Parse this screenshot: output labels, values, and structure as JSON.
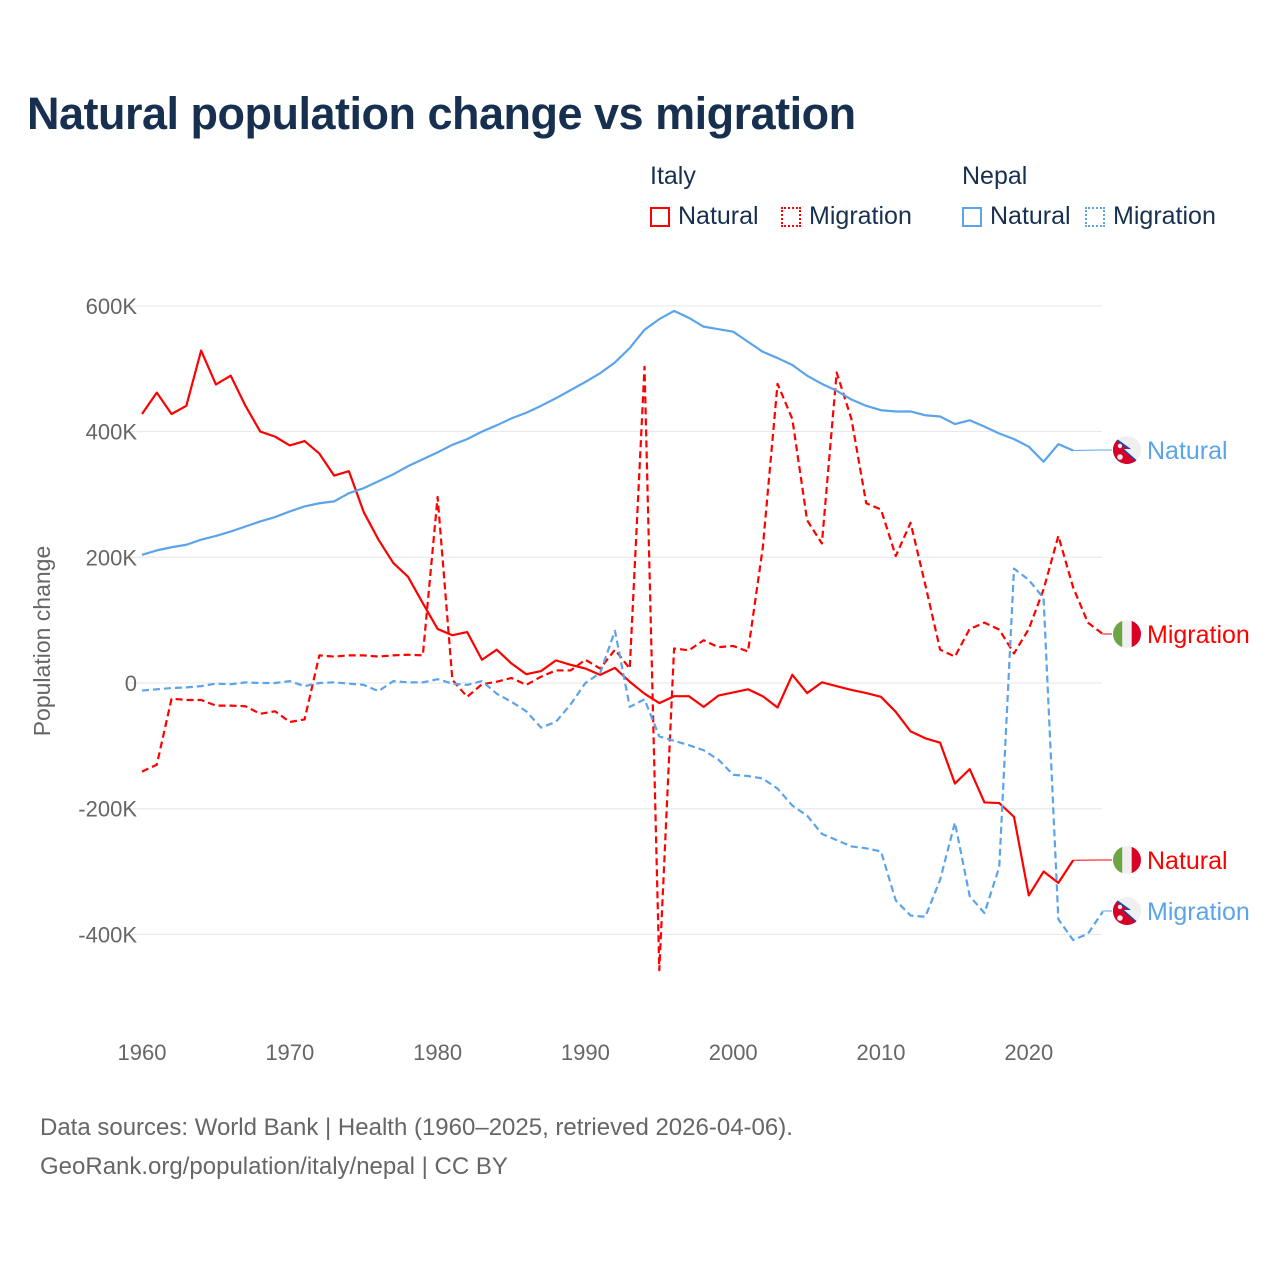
{
  "title": "Natural population change vs migration",
  "legend": {
    "groups": [
      {
        "name": "Italy",
        "items": [
          {
            "label": "Natural",
            "style": "solid",
            "color": "#ff0000"
          },
          {
            "label": "Migration",
            "style": "dotted",
            "color": "#ff0000"
          }
        ]
      },
      {
        "name": "Nepal",
        "items": [
          {
            "label": "Natural",
            "style": "solid",
            "color": "#5ba4ea"
          },
          {
            "label": "Migration",
            "style": "dotted",
            "color": "#5ba4ea"
          }
        ]
      }
    ]
  },
  "footer": {
    "line1": "Data sources: World Bank | Health (1960–2025, retrieved 2026-04-06).",
    "line2": "GeoRank.org/population/italy/nepal | CC BY"
  },
  "chart_data": {
    "type": "line",
    "title": "Natural population change vs migration",
    "xlabel": "",
    "ylabel": "Population change",
    "xlim": [
      1960,
      2025
    ],
    "ylim": [
      -400000,
      600000
    ],
    "grid": true,
    "legend_position": "top-right",
    "x_ticks": [
      1960,
      1970,
      1980,
      1990,
      2000,
      2010,
      2020
    ],
    "x_tick_labels": [
      "1960",
      "1970",
      "1980",
      "1990",
      "2000",
      "2010",
      "2020"
    ],
    "y_ticks": [
      -400000,
      -200000,
      0,
      200000,
      400000,
      600000
    ],
    "y_tick_labels": [
      "-400K",
      "-200K",
      "0",
      "200K",
      "400K",
      "600K"
    ],
    "x_start": 1960,
    "series": [
      {
        "name": "Italy Natural",
        "end_label": "Natural",
        "flag": "italy",
        "color": "#ff0000",
        "dashed": false,
        "values_thousands": [
          428,
          462,
          428,
          441,
          529,
          475,
          489,
          441,
          400,
          392,
          378,
          385,
          365,
          330,
          337,
          272,
          228,
          191,
          169,
          127,
          86,
          76,
          81,
          37,
          53,
          31,
          14,
          19,
          36,
          29,
          23,
          13,
          24,
          2,
          -17,
          -32,
          -21,
          -21,
          -38,
          -20,
          -15,
          -10,
          -21,
          -39,
          13,
          -16,
          1,
          -5,
          -11,
          -16,
          -22,
          -46,
          -77,
          -88,
          -95,
          -160,
          -137,
          -190,
          -191,
          -213,
          -338,
          -300,
          -318,
          -282
        ]
      },
      {
        "name": "Italy Migration",
        "end_label": "Migration",
        "flag": "italy",
        "color": "#ff0000",
        "dashed": true,
        "values_thousands": [
          -141,
          -130,
          -25,
          -27,
          -27,
          -36,
          -36,
          -37,
          -49,
          -45,
          -62,
          -58,
          44,
          42,
          44,
          44,
          42,
          44,
          45,
          44,
          296,
          5,
          -22,
          -2,
          2,
          8,
          -3,
          10,
          20,
          20,
          37,
          23,
          53,
          23,
          503,
          -457,
          55,
          52,
          68,
          57,
          59,
          50,
          215,
          476,
          420,
          259,
          222,
          494,
          420,
          286,
          276,
          202,
          255,
          156,
          53,
          42,
          86,
          96,
          85,
          47,
          86,
          149,
          234,
          152,
          96,
          78
        ]
      },
      {
        "name": "Nepal Natural",
        "end_label": "Natural",
        "flag": "nepal",
        "color": "#5ba4ea",
        "dashed": false,
        "values_thousands": [
          204,
          211,
          216,
          220,
          228,
          234,
          241,
          249,
          257,
          264,
          273,
          281,
          286,
          289,
          302,
          310,
          321,
          332,
          345,
          356,
          367,
          379,
          388,
          400,
          410,
          421,
          430,
          441,
          453,
          466,
          479,
          493,
          510,
          533,
          562,
          579,
          592,
          581,
          567,
          563,
          559,
          543,
          527,
          517,
          506,
          489,
          476,
          465,
          451,
          441,
          434,
          432,
          432,
          426,
          424,
          412,
          418,
          408,
          397,
          388,
          376,
          352,
          380,
          370
        ]
      },
      {
        "name": "Nepal Migration",
        "end_label": "Migration",
        "flag": "nepal",
        "color": "#5ba4ea",
        "dashed": true,
        "values_thousands": [
          -12,
          -10,
          -8,
          -7,
          -5,
          -1,
          -2,
          1,
          0,
          0,
          3,
          -5,
          0,
          1,
          -1,
          -3,
          -13,
          3,
          1,
          1,
          6,
          -1,
          -3,
          3,
          -17,
          -30,
          -45,
          -71,
          -62,
          -34,
          0,
          16,
          83,
          -38,
          -26,
          -85,
          -92,
          -99,
          -107,
          -122,
          -146,
          -148,
          -152,
          -168,
          -195,
          -211,
          -240,
          -250,
          -260,
          -263,
          -268,
          -346,
          -370,
          -372,
          -313,
          -222,
          -339,
          -366,
          -293,
          182,
          164,
          135,
          -376,
          -409,
          -399,
          -364
        ]
      }
    ]
  }
}
